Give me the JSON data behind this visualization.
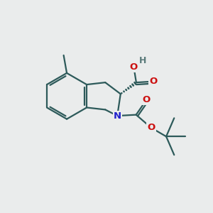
{
  "bg_color": "#eaecec",
  "bond_color": "#2d5a5a",
  "bond_width": 1.6,
  "atom_colors": {
    "N": "#2020cc",
    "O": "#cc1010",
    "H": "#5a7a7a",
    "C": "#2d5a5a"
  },
  "figsize": [
    3.0,
    3.0
  ],
  "dpi": 100
}
